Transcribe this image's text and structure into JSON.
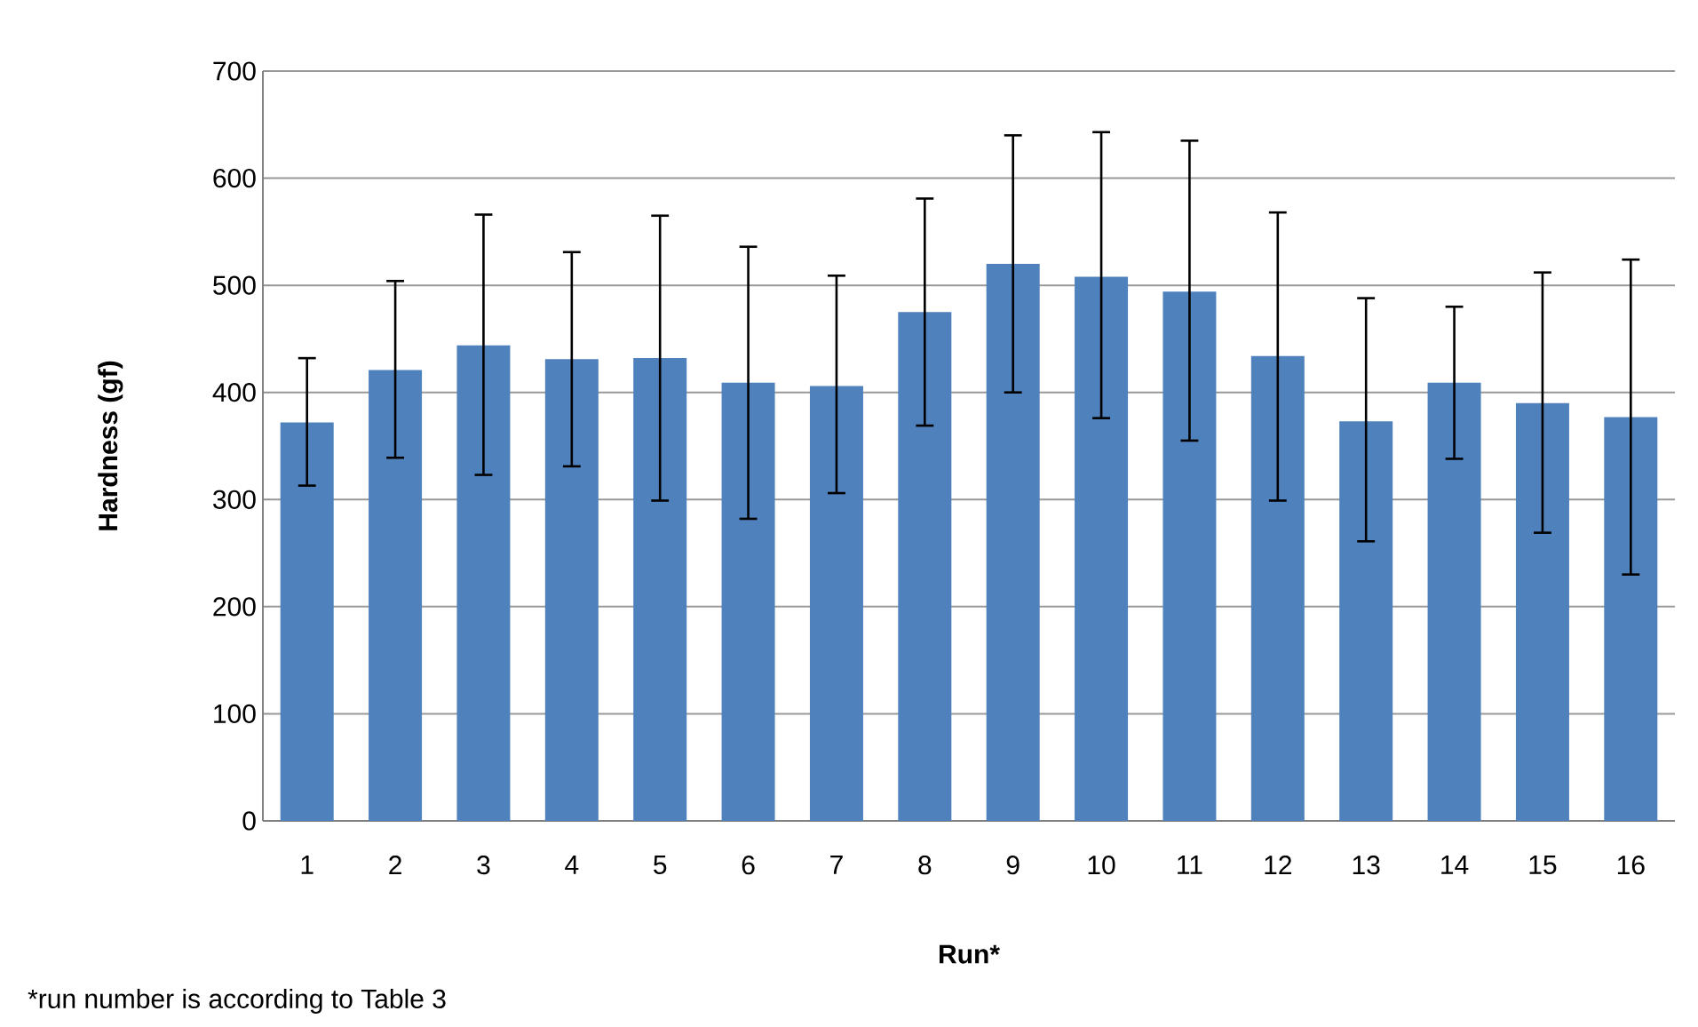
{
  "chart_data": {
    "type": "bar",
    "xlabel": "Run*",
    "ylabel": "Hardness (gf)",
    "categories": [
      "1",
      "2",
      "3",
      "4",
      "5",
      "6",
      "7",
      "8",
      "9",
      "10",
      "11",
      "12",
      "13",
      "14",
      "15",
      "16"
    ],
    "values": [
      372,
      421,
      444,
      431,
      432,
      409,
      406,
      475,
      520,
      508,
      494,
      434,
      373,
      409,
      390,
      377
    ],
    "errors": [
      [
        313,
        432
      ],
      [
        339,
        504
      ],
      [
        323,
        566
      ],
      [
        331,
        531
      ],
      [
        299,
        565
      ],
      [
        282,
        536
      ],
      [
        306,
        509
      ],
      [
        369,
        581
      ],
      [
        400,
        640
      ],
      [
        376,
        643
      ],
      [
        355,
        635
      ],
      [
        299,
        568
      ],
      [
        261,
        488
      ],
      [
        338,
        480
      ],
      [
        269,
        512
      ],
      [
        230,
        524
      ]
    ],
    "color": "#4f81bd",
    "ylim": [
      0,
      700
    ],
    "yticks": [
      0,
      100,
      200,
      300,
      400,
      500,
      600,
      700
    ],
    "grid": "y",
    "annotations": [
      "*run number is  according to Table 3"
    ]
  }
}
